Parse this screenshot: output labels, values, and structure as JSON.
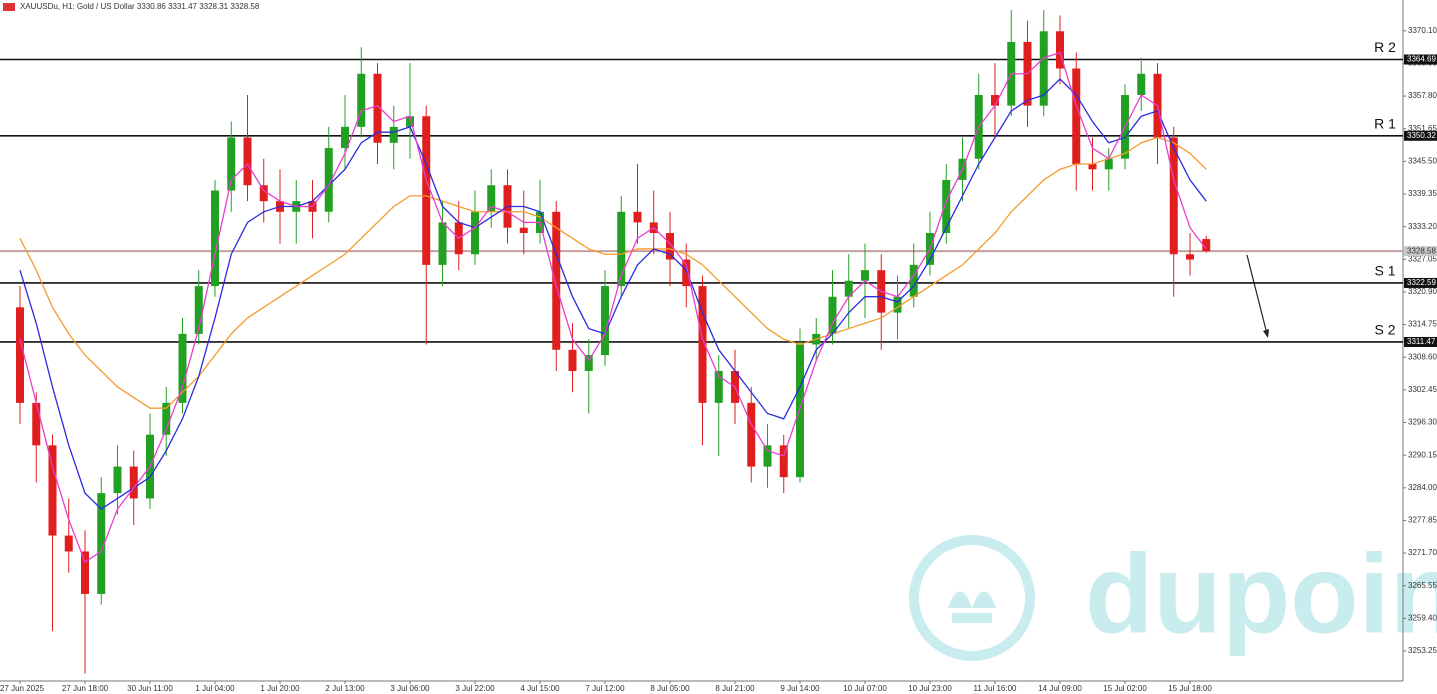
{
  "chart_data": {
    "type": "candlestick",
    "title": "XAUUSDu, H1:  Gold / US Dollar  3330.86 3331.47 3328.31 3328.58",
    "categories": [
      "27 Jun 2025",
      null,
      null,
      null,
      "27 Jun 18:00",
      null,
      null,
      null,
      "30 Jun 11:00",
      null,
      null,
      null,
      "1 Jul 04:00",
      null,
      null,
      null,
      "1 Jul 20:00",
      null,
      null,
      null,
      "2 Jul 13:00",
      null,
      null,
      null,
      "3 Jul 06:00",
      null,
      null,
      null,
      "3 Jul 22:00",
      null,
      null,
      null,
      "4 Jul 15:00",
      null,
      null,
      null,
      "7 Jul 12:00",
      null,
      null,
      null,
      "8 Jul 05:00",
      null,
      null,
      null,
      "8 Jul 21:00",
      null,
      null,
      null,
      "9 Jul 14:00",
      null,
      null,
      null,
      "10 Jul 07:00",
      null,
      null,
      null,
      "10 Jul 23:00",
      null,
      null,
      null,
      "11 Jul 16:00",
      null,
      null,
      null,
      "14 Jul 09:00",
      null,
      null,
      null,
      "15 Jul 02:00",
      null,
      null,
      null,
      "15 Jul 18:00",
      null
    ],
    "open": [
      3318,
      3300,
      3292,
      3275,
      3272,
      3264,
      3283,
      3288,
      3282,
      3294,
      3300,
      3313,
      3322,
      3340,
      3350,
      3341,
      3338,
      3336,
      3338,
      3336,
      3348,
      3352,
      3362,
      3349,
      3352,
      3354,
      3326,
      3334,
      3328,
      3336,
      3341,
      3333,
      3332,
      3336,
      3310,
      3306,
      3309,
      3322,
      3336,
      3334,
      3332,
      3327,
      3322,
      3300,
      3306,
      3300,
      3288,
      3292,
      3286,
      3311,
      3313,
      3320,
      3323,
      3325,
      3317,
      3320,
      3326,
      3332,
      3342,
      3346,
      3358,
      3356,
      3368,
      3356,
      3370,
      3363,
      3345,
      3344,
      3346,
      3358,
      3362,
      3350,
      3328,
      3330.86
    ],
    "high": [
      3322,
      3302,
      3294,
      3282,
      3276,
      3286,
      3292,
      3291,
      3298,
      3303,
      3316,
      3325,
      3342,
      3353,
      3358,
      3346,
      3344,
      3342,
      3342,
      3352,
      3358,
      3367,
      3364,
      3356,
      3364,
      3356,
      3338,
      3338,
      3340,
      3344,
      3344,
      3340,
      3342,
      3338,
      3315,
      3312,
      3325,
      3339,
      3345,
      3340,
      3336,
      3330,
      3324,
      3309,
      3310,
      3303,
      3296,
      3294,
      3314,
      3316,
      3325,
      3328,
      3330,
      3328,
      3324,
      3330,
      3336,
      3345,
      3350,
      3362,
      3364,
      3374,
      3372,
      3374,
      3373,
      3366,
      3350,
      3348,
      3360,
      3365,
      3364,
      3352,
      3332,
      3331.47
    ],
    "low": [
      3296,
      3285,
      3257,
      3268,
      3249,
      3262,
      3279,
      3277,
      3280,
      3290,
      3298,
      3311,
      3320,
      3336,
      3338,
      3334,
      3330,
      3330,
      3331,
      3334,
      3344,
      3350,
      3345,
      3344,
      3346,
      3311,
      3322,
      3325,
      3326,
      3333,
      3330,
      3328,
      3330,
      3306,
      3302,
      3298,
      3307,
      3320,
      3330,
      3328,
      3322,
      3318,
      3292,
      3290,
      3296,
      3285,
      3284,
      3283,
      3285,
      3308,
      3311,
      3314,
      3316,
      3310,
      3312,
      3318,
      3324,
      3330,
      3338,
      3344,
      3350,
      3354,
      3352,
      3354,
      3360,
      3340,
      3340,
      3340,
      3344,
      3355,
      3345,
      3320,
      3324,
      3328.31
    ],
    "close": [
      3300,
      3292,
      3275,
      3272,
      3264,
      3283,
      3288,
      3282,
      3294,
      3300,
      3313,
      3322,
      3340,
      3350,
      3341,
      3338,
      3336,
      3338,
      3336,
      3348,
      3352,
      3362,
      3349,
      3352,
      3354,
      3326,
      3334,
      3328,
      3336,
      3341,
      3333,
      3332,
      3336,
      3310,
      3306,
      3309,
      3322,
      3336,
      3334,
      3332,
      3327,
      3322,
      3300,
      3306,
      3300,
      3288,
      3292,
      3286,
      3311,
      3313,
      3320,
      3323,
      3325,
      3317,
      3320,
      3326,
      3332,
      3342,
      3346,
      3358,
      3356,
      3368,
      3356,
      3370,
      3363,
      3345,
      3344,
      3346,
      3358,
      3362,
      3350,
      3328,
      3327,
      3328.58
    ],
    "up_color": "#22a022",
    "down_color": "#e01e1e",
    "moving_averages": [
      {
        "color": "#f39c2b",
        "values": [
          3331,
          3325,
          3318,
          3313,
          3309,
          3306,
          3303,
          3301,
          3299,
          3299,
          3302,
          3305,
          3309,
          3313,
          3316,
          3318,
          3320,
          3322,
          3324,
          3326,
          3328,
          3331,
          3334,
          3337,
          3339,
          3339,
          3338,
          3337,
          3336,
          3336,
          3336,
          3336,
          3335,
          3333,
          3331,
          3329,
          3328,
          3328,
          3329,
          3329,
          3329,
          3328,
          3326,
          3323,
          3320,
          3317,
          3314,
          3312,
          3311,
          3312,
          3313,
          3314,
          3315,
          3316,
          3318,
          3320,
          3322,
          3324,
          3326,
          3329,
          3332,
          3336,
          3339,
          3342,
          3344,
          3345,
          3345,
          3346,
          3347,
          3349,
          3350,
          3349,
          3347,
          3344
        ]
      },
      {
        "color": "#2b2be0",
        "values": [
          3325,
          3315,
          3303,
          3292,
          3283,
          3280,
          3282,
          3284,
          3286,
          3291,
          3297,
          3305,
          3316,
          3328,
          3334,
          3336,
          3337,
          3337,
          3338,
          3341,
          3344,
          3349,
          3351,
          3351,
          3352,
          3345,
          3337,
          3334,
          3333,
          3335,
          3337,
          3337,
          3336,
          3328,
          3320,
          3314,
          3313,
          3320,
          3326,
          3329,
          3328,
          3325,
          3317,
          3310,
          3306,
          3302,
          3298,
          3297,
          3303,
          3310,
          3313,
          3317,
          3320,
          3320,
          3319,
          3322,
          3327,
          3333,
          3339,
          3345,
          3350,
          3355,
          3357,
          3358,
          3361,
          3358,
          3353,
          3349,
          3350,
          3354,
          3355,
          3348,
          3342,
          3338
        ]
      },
      {
        "color": "#e83ed0",
        "values": [
          3312,
          3300,
          3288,
          3278,
          3270,
          3272,
          3280,
          3284,
          3288,
          3295,
          3303,
          3314,
          3328,
          3342,
          3345,
          3340,
          3338,
          3337,
          3337,
          3341,
          3347,
          3355,
          3356,
          3353,
          3354,
          3342,
          3334,
          3331,
          3333,
          3337,
          3336,
          3334,
          3334,
          3322,
          3312,
          3308,
          3313,
          3324,
          3331,
          3333,
          3330,
          3326,
          3312,
          3305,
          3303,
          3296,
          3291,
          3290,
          3299,
          3308,
          3315,
          3320,
          3323,
          3321,
          3320,
          3324,
          3329,
          3338,
          3344,
          3352,
          3356,
          3362,
          3362,
          3365,
          3366,
          3356,
          3348,
          3346,
          3352,
          3358,
          3356,
          3342,
          3333,
          3329
        ]
      }
    ],
    "levels": [
      {
        "name": "R 2",
        "value": 3364.69
      },
      {
        "name": "R 1",
        "value": 3350.32
      },
      {
        "name": "S 1",
        "value": 3322.59
      },
      {
        "name": "S 2",
        "value": 3311.47
      }
    ],
    "current_price": 3328.58,
    "ylim": [
      3247.6,
      3375.9
    ],
    "yticks": [
      {
        "value": 3370.1,
        "label": "3370.10"
      },
      3363.95,
      {
        "value": 3357.8,
        "label": "3357.80"
      },
      3351.65,
      {
        "value": 3345.5,
        "label": "3345.50"
      },
      3339.35,
      {
        "value": 3333.2,
        "label": "3333.20"
      },
      3327.05,
      {
        "value": 3320.9,
        "label": "3320.90"
      },
      3314.75,
      {
        "value": 3308.6,
        "label": "3308.60"
      },
      3302.45,
      {
        "value": 3296.3,
        "label": "3296.30"
      },
      3290.15,
      {
        "value": 3284,
        "label": "3284.00"
      },
      3277.85,
      {
        "value": 3271.7,
        "label": "3271.70"
      },
      3265.55,
      {
        "value": 3259.4,
        "label": "3259.40"
      },
      3253.25
    ],
    "watermark": "dupoin"
  }
}
